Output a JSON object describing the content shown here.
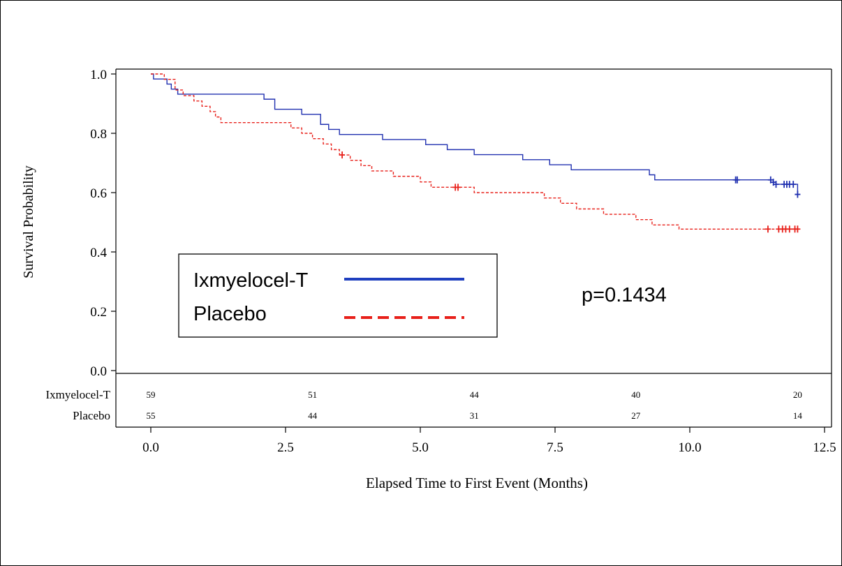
{
  "chart_data": {
    "type": "line",
    "title": "",
    "xlabel": "Elapsed Time to First Event (Months)",
    "ylabel": "Survival Probability",
    "xlim": [
      -0.3,
      12.5
    ],
    "ylim": [
      0.0,
      1.0
    ],
    "x_ticks": [
      "0.0",
      "2.5",
      "5.0",
      "7.5",
      "10.0",
      "12.5"
    ],
    "y_ticks": [
      "0.0",
      "0.2",
      "0.4",
      "0.6",
      "0.8",
      "1.0"
    ],
    "annotation": "p=0.1434",
    "legend": {
      "position": "center-left",
      "entries": [
        {
          "label": "Ixmyelocel-T",
          "color": "#1f3fbf",
          "style": "solid"
        },
        {
          "label": "Placebo",
          "color": "#e8201a",
          "style": "dashed"
        }
      ]
    },
    "series": [
      {
        "name": "Ixmyelocel-T",
        "color": "#2030b0",
        "steps": [
          [
            0,
            1.0
          ],
          [
            0.05,
            0.983
          ],
          [
            0.3,
            0.966
          ],
          [
            0.38,
            0.949
          ],
          [
            0.5,
            0.932
          ],
          [
            2.1,
            0.915
          ],
          [
            2.3,
            0.881
          ],
          [
            2.8,
            0.864
          ],
          [
            3.15,
            0.83
          ],
          [
            3.3,
            0.813
          ],
          [
            3.5,
            0.796
          ],
          [
            4.3,
            0.779
          ],
          [
            5.1,
            0.762
          ],
          [
            5.5,
            0.745
          ],
          [
            6.0,
            0.728
          ],
          [
            6.9,
            0.711
          ],
          [
            7.4,
            0.694
          ],
          [
            7.8,
            0.677
          ],
          [
            9.25,
            0.66
          ],
          [
            9.35,
            0.643
          ],
          [
            11.55,
            0.635
          ],
          [
            11.6,
            0.628
          ],
          [
            12.0,
            0.594
          ]
        ],
        "end": 12.0,
        "censored": [
          [
            10.85,
            0.643
          ],
          [
            10.88,
            0.643
          ],
          [
            11.5,
            0.643
          ],
          [
            11.55,
            0.635
          ],
          [
            11.6,
            0.628
          ],
          [
            11.75,
            0.628
          ],
          [
            11.8,
            0.628
          ],
          [
            11.85,
            0.628
          ],
          [
            11.92,
            0.628
          ],
          [
            12.0,
            0.594
          ]
        ]
      },
      {
        "name": "Placebo",
        "color": "#e8201a",
        "steps": [
          [
            0,
            1.0
          ],
          [
            0.25,
            0.982
          ],
          [
            0.45,
            0.946
          ],
          [
            0.6,
            0.927
          ],
          [
            0.8,
            0.909
          ],
          [
            0.95,
            0.891
          ],
          [
            1.1,
            0.873
          ],
          [
            1.2,
            0.855
          ],
          [
            1.3,
            0.836
          ],
          [
            2.6,
            0.818
          ],
          [
            2.8,
            0.8
          ],
          [
            3.0,
            0.782
          ],
          [
            3.2,
            0.764
          ],
          [
            3.35,
            0.745
          ],
          [
            3.5,
            0.727
          ],
          [
            3.7,
            0.709
          ],
          [
            3.9,
            0.691
          ],
          [
            4.1,
            0.673
          ],
          [
            4.5,
            0.655
          ],
          [
            5.0,
            0.636
          ],
          [
            5.2,
            0.618
          ],
          [
            6.0,
            0.6
          ],
          [
            7.3,
            0.582
          ],
          [
            7.6,
            0.564
          ],
          [
            7.9,
            0.545
          ],
          [
            8.4,
            0.527
          ],
          [
            9.0,
            0.509
          ],
          [
            9.3,
            0.491
          ],
          [
            9.8,
            0.477
          ]
        ],
        "end": 12.0,
        "censored": [
          [
            3.55,
            0.727
          ],
          [
            5.65,
            0.618
          ],
          [
            5.7,
            0.618
          ],
          [
            11.45,
            0.477
          ],
          [
            11.65,
            0.477
          ],
          [
            11.72,
            0.477
          ],
          [
            11.78,
            0.477
          ],
          [
            11.85,
            0.477
          ],
          [
            11.95,
            0.477
          ],
          [
            12.0,
            0.477
          ]
        ]
      }
    ],
    "risk_table": {
      "rows": [
        {
          "label": "Ixmyelocel-T",
          "values": [
            "59",
            "51",
            "44",
            "40",
            "20"
          ]
        },
        {
          "label": "Placebo",
          "values": [
            "55",
            "44",
            "31",
            "27",
            "14"
          ]
        }
      ],
      "x": [
        0,
        3,
        6,
        9,
        12
      ]
    }
  }
}
